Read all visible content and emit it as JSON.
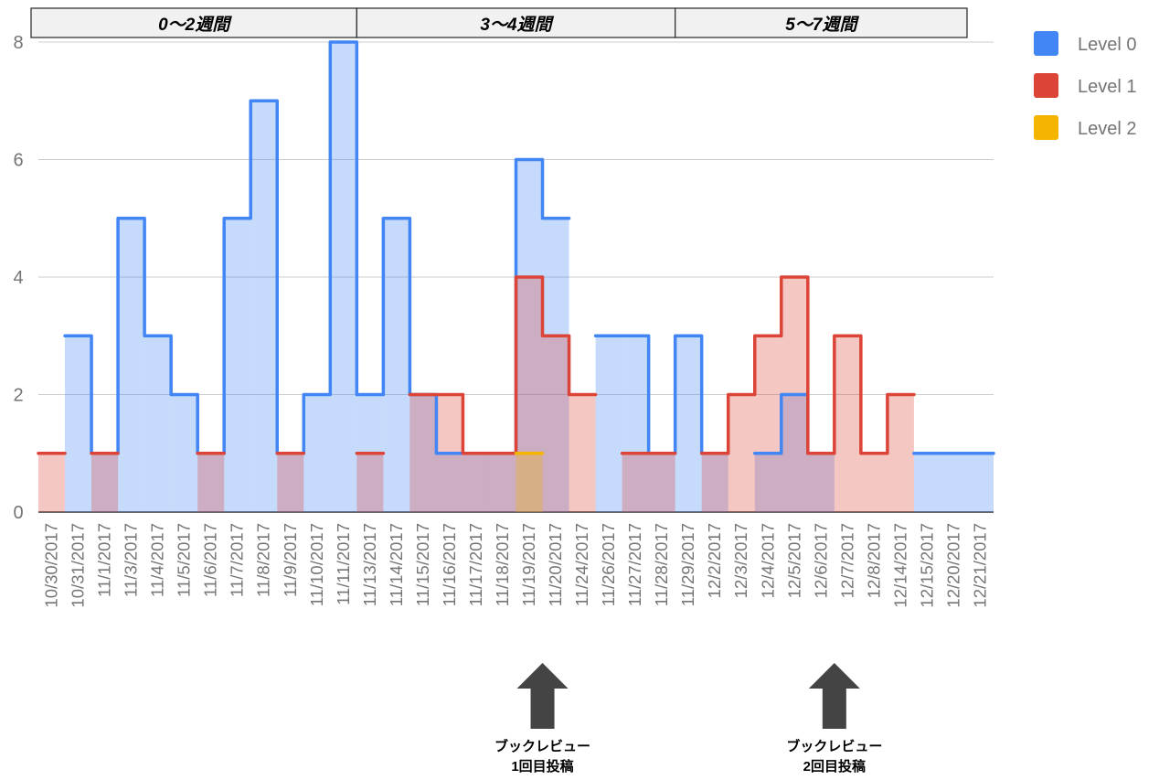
{
  "chart_data": {
    "type": "area",
    "step": true,
    "categories": [
      "10/30/2017",
      "10/31/2017",
      "11/1/2017",
      "11/3/2017",
      "11/4/2017",
      "11/5/2017",
      "11/6/2017",
      "11/7/2017",
      "11/8/2017",
      "11/9/2017",
      "11/10/2017",
      "11/11/2017",
      "11/13/2017",
      "11/14/2017",
      "11/15/2017",
      "11/16/2017",
      "11/17/2017",
      "11/18/2017",
      "11/19/2017",
      "11/20/2017",
      "11/24/2017",
      "11/26/2017",
      "11/27/2017",
      "11/28/2017",
      "11/29/2017",
      "12/2/2017",
      "12/3/2017",
      "12/4/2017",
      "12/5/2017",
      "12/6/2017",
      "12/7/2017",
      "12/8/2017",
      "12/14/2017",
      "12/15/2017",
      "12/20/2017",
      "12/21/2017"
    ],
    "series": [
      {
        "name": "Level 0",
        "color": "#4285f4",
        "values": [
          null,
          3,
          1,
          5,
          3,
          2,
          1,
          5,
          7,
          1,
          2,
          8,
          2,
          5,
          2,
          1,
          1,
          1,
          6,
          5,
          null,
          3,
          3,
          1,
          3,
          1,
          null,
          1,
          2,
          1,
          null,
          null,
          null,
          1,
          1,
          1
        ]
      },
      {
        "name": "Level 1",
        "color": "#db4437",
        "values": [
          1,
          null,
          1,
          null,
          null,
          null,
          1,
          null,
          null,
          1,
          null,
          null,
          1,
          null,
          2,
          2,
          1,
          1,
          4,
          3,
          2,
          null,
          1,
          1,
          null,
          1,
          2,
          3,
          4,
          1,
          3,
          1,
          2,
          null,
          null,
          null
        ]
      },
      {
        "name": "Level 2",
        "color": "#f4b400",
        "values": [
          null,
          null,
          null,
          null,
          null,
          null,
          null,
          null,
          null,
          null,
          null,
          null,
          null,
          null,
          null,
          null,
          null,
          null,
          1,
          null,
          null,
          null,
          null,
          null,
          null,
          null,
          null,
          null,
          null,
          null,
          null,
          null,
          null,
          null,
          null,
          null
        ]
      }
    ],
    "ylim": [
      0,
      8
    ],
    "yticks": [
      0,
      2,
      4,
      6,
      8
    ],
    "grid": true,
    "legend_position": "right",
    "bands": [
      {
        "label": "0〜2週間",
        "from": 0,
        "to": 12
      },
      {
        "label": "3〜4週間",
        "from": 12,
        "to": 24
      },
      {
        "label": "5〜7週間",
        "from": 24,
        "to": 35
      }
    ],
    "annotations": [
      {
        "line1": "ブックレビュー",
        "line2": "1回目投稿",
        "category": "11/20/2017"
      },
      {
        "line1": "ブックレビュー",
        "line2": "2回目投稿",
        "category": "12/7/2017"
      }
    ]
  }
}
